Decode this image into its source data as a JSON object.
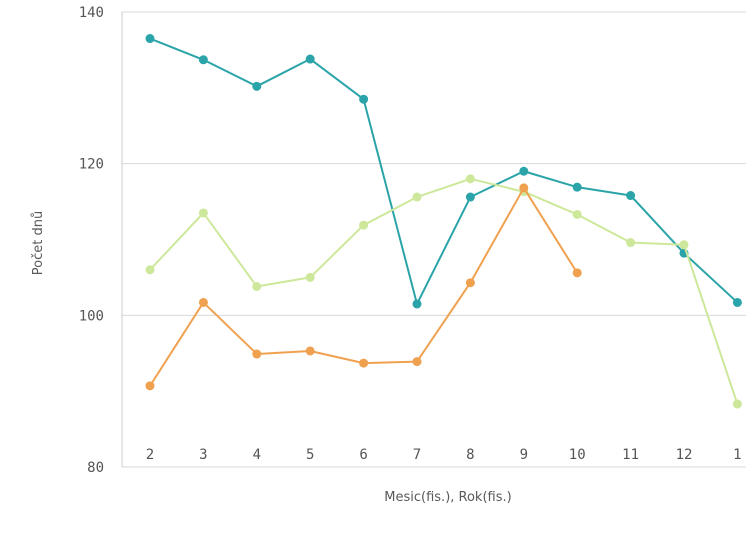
{
  "chart_data": {
    "type": "line",
    "title": "",
    "xlabel": "Mesic(fis.), Rok(fis.)",
    "ylabel": "Počet dnů",
    "categories": [
      "2",
      "3",
      "4",
      "5",
      "6",
      "7",
      "8",
      "9",
      "10",
      "11",
      "12",
      "1"
    ],
    "ylim": [
      80,
      140
    ],
    "yticks": [
      80,
      100,
      120,
      140
    ],
    "grid": true,
    "legend": "none",
    "series": [
      {
        "color": "#2aa4a8",
        "values": [
          136.5,
          133.7,
          130.2,
          133.8,
          128.5,
          101.5,
          115.6,
          119.0,
          116.9,
          115.8,
          108.2,
          101.7
        ]
      },
      {
        "color": "#cde89a",
        "values": [
          106.0,
          113.5,
          103.8,
          105.0,
          111.9,
          115.6,
          118.0,
          116.3,
          113.3,
          109.6,
          109.3,
          88.3
        ]
      },
      {
        "color": "#f0a150",
        "values": [
          90.7,
          101.7,
          94.9,
          95.3,
          93.7,
          93.9,
          104.3,
          116.8,
          105.6,
          null,
          null,
          null
        ]
      }
    ]
  }
}
